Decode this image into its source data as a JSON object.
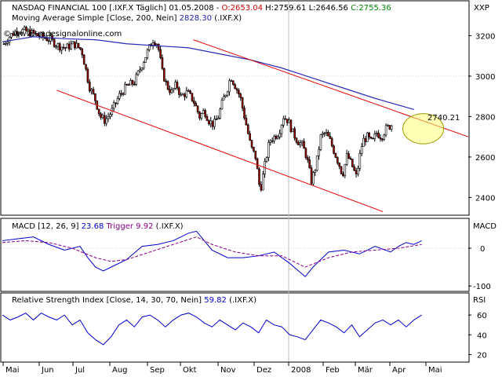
{
  "chart_data": [
    {
      "type": "candlestick",
      "scale": "XXP",
      "header": {
        "prefix": "NASDAQ FINANCIAL 100 [.IXF.X  Täglich] 01.05.2008 - ",
        "open": "O:2653.04",
        "high": "H:2759.61",
        "low": "L:2646.56",
        "close": "C:2755.36"
      },
      "ma_label": {
        "prefix": "Moving Average Simple [Close, 200, Nein]",
        "value": "2828.30",
        "suffix": "(.IXF.X)"
      },
      "watermark": "© www.tradesignalonline.com",
      "last_price_label": "2740.21",
      "ylim": [
        2320,
        3260
      ],
      "yticks": [
        2400,
        2600,
        2800,
        3000,
        3200
      ],
      "close_path": [
        [
          0,
          3160
        ],
        [
          8,
          3200
        ],
        [
          18,
          3230
        ],
        [
          30,
          3220
        ],
        [
          44,
          3200
        ],
        [
          60,
          3180
        ],
        [
          70,
          3150
        ],
        [
          80,
          3140
        ],
        [
          90,
          3160
        ],
        [
          100,
          3130
        ],
        [
          110,
          2950
        ],
        [
          118,
          2880
        ],
        [
          124,
          2800
        ],
        [
          130,
          2780
        ],
        [
          138,
          2820
        ],
        [
          148,
          2900
        ],
        [
          158,
          2950
        ],
        [
          168,
          2970
        ],
        [
          178,
          3060
        ],
        [
          186,
          3130
        ],
        [
          192,
          3180
        ],
        [
          198,
          3160
        ],
        [
          204,
          3020
        ],
        [
          210,
          2950
        ],
        [
          216,
          2920
        ],
        [
          222,
          2960
        ],
        [
          228,
          2900
        ],
        [
          236,
          2920
        ],
        [
          244,
          2880
        ],
        [
          252,
          2800
        ],
        [
          258,
          2830
        ],
        [
          264,
          2780
        ],
        [
          270,
          2760
        ],
        [
          276,
          2800
        ],
        [
          282,
          2880
        ],
        [
          288,
          2940
        ],
        [
          292,
          3000
        ],
        [
          298,
          2950
        ],
        [
          304,
          2900
        ],
        [
          312,
          2760
        ],
        [
          318,
          2650
        ],
        [
          324,
          2600
        ],
        [
          330,
          2430
        ],
        [
          336,
          2560
        ],
        [
          342,
          2680
        ],
        [
          348,
          2700
        ],
        [
          354,
          2720
        ],
        [
          360,
          2800
        ],
        [
          366,
          2780
        ],
        [
          372,
          2720
        ],
        [
          378,
          2680
        ],
        [
          384,
          2660
        ],
        [
          390,
          2600
        ],
        [
          396,
          2480
        ],
        [
          402,
          2560
        ],
        [
          408,
          2700
        ],
        [
          414,
          2720
        ],
        [
          420,
          2680
        ],
        [
          426,
          2620
        ],
        [
          432,
          2560
        ],
        [
          436,
          2510
        ],
        [
          442,
          2610
        ],
        [
          448,
          2560
        ],
        [
          454,
          2500
        ],
        [
          458,
          2600
        ],
        [
          462,
          2680
        ],
        [
          468,
          2700
        ],
        [
          474,
          2670
        ],
        [
          480,
          2720
        ],
        [
          486,
          2700
        ],
        [
          492,
          2740
        ],
        [
          500,
          2760
        ]
      ],
      "ma_path": [
        [
          0,
          3170
        ],
        [
          40,
          3195
        ],
        [
          80,
          3185
        ],
        [
          120,
          3180
        ],
        [
          160,
          3160
        ],
        [
          200,
          3150
        ],
        [
          240,
          3140
        ],
        [
          280,
          3110
        ],
        [
          320,
          3080
        ],
        [
          360,
          3040
        ],
        [
          400,
          2990
        ],
        [
          440,
          2940
        ],
        [
          480,
          2890
        ],
        [
          530,
          2835
        ]
      ],
      "trendlines": [
        {
          "from": [
            246,
            3180
          ],
          "to": [
            600,
            2700
          ]
        },
        {
          "from": [
            70,
            2930
          ],
          "to": [
            490,
            2330
          ]
        }
      ],
      "highlight": {
        "center": [
          542,
          2740
        ],
        "radius_x": 26,
        "radius_y": 75
      }
    },
    {
      "type": "line",
      "label": {
        "prefix": "MACD [12, 26, 9]",
        "value": "23.68",
        "trigger": "Trigger 9.92",
        "suffix": "(.IXF.X)"
      },
      "scale": "MACD",
      "ylim": [
        -110,
        50
      ],
      "yticks": [
        0,
        -100
      ],
      "series": [
        {
          "values": [
            [
              0,
              20
            ],
            [
              20,
              25
            ],
            [
              40,
              30
            ],
            [
              60,
              10
            ],
            [
              80,
              -5
            ],
            [
              100,
              5
            ],
            [
              110,
              -25
            ],
            [
              120,
              -50
            ],
            [
              130,
              -60
            ],
            [
              140,
              -50
            ],
            [
              160,
              -30
            ],
            [
              180,
              5
            ],
            [
              200,
              10
            ],
            [
              220,
              20
            ],
            [
              240,
              40
            ],
            [
              250,
              45
            ],
            [
              260,
              20
            ],
            [
              270,
              -5
            ],
            [
              290,
              -25
            ],
            [
              310,
              -25
            ],
            [
              330,
              -20
            ],
            [
              350,
              -10
            ],
            [
              370,
              -40
            ],
            [
              390,
              -75
            ],
            [
              400,
              -50
            ],
            [
              420,
              -10
            ],
            [
              440,
              -5
            ],
            [
              460,
              -15
            ],
            [
              480,
              5
            ],
            [
              500,
              -10
            ],
            [
              510,
              5
            ],
            [
              520,
              15
            ],
            [
              530,
              10
            ],
            [
              540,
              20
            ]
          ]
        },
        {
          "values": [
            [
              0,
              15
            ],
            [
              30,
              20
            ],
            [
              60,
              15
            ],
            [
              90,
              0
            ],
            [
              120,
              -25
            ],
            [
              140,
              -35
            ],
            [
              160,
              -30
            ],
            [
              190,
              -10
            ],
            [
              220,
              10
            ],
            [
              250,
              30
            ],
            [
              270,
              10
            ],
            [
              300,
              -10
            ],
            [
              330,
              -20
            ],
            [
              360,
              -20
            ],
            [
              390,
              -50
            ],
            [
              420,
              -25
            ],
            [
              450,
              -10
            ],
            [
              480,
              -5
            ],
            [
              510,
              0
            ],
            [
              540,
              10
            ]
          ]
        }
      ]
    },
    {
      "type": "line",
      "label": {
        "prefix": "Relative Strength Index [Close, 14, 30, 70, Nein]",
        "value": "59.82",
        "suffix": "(.IXF.X)"
      },
      "scale": "RSI",
      "ylim": [
        14,
        72
      ],
      "yticks": [
        60,
        40,
        20
      ],
      "series": [
        {
          "values": [
            [
              0,
              60
            ],
            [
              10,
              55
            ],
            [
              20,
              58
            ],
            [
              30,
              62
            ],
            [
              40,
              55
            ],
            [
              50,
              62
            ],
            [
              60,
              58
            ],
            [
              70,
              55
            ],
            [
              80,
              60
            ],
            [
              90,
              50
            ],
            [
              100,
              55
            ],
            [
              110,
              42
            ],
            [
              120,
              35
            ],
            [
              130,
              30
            ],
            [
              140,
              38
            ],
            [
              150,
              50
            ],
            [
              160,
              55
            ],
            [
              170,
              48
            ],
            [
              180,
              58
            ],
            [
              190,
              60
            ],
            [
              200,
              55
            ],
            [
              210,
              48
            ],
            [
              220,
              55
            ],
            [
              230,
              60
            ],
            [
              240,
              62
            ],
            [
              250,
              58
            ],
            [
              260,
              52
            ],
            [
              270,
              48
            ],
            [
              280,
              55
            ],
            [
              290,
              50
            ],
            [
              300,
              45
            ],
            [
              310,
              52
            ],
            [
              320,
              48
            ],
            [
              330,
              42
            ],
            [
              340,
              55
            ],
            [
              350,
              50
            ],
            [
              360,
              48
            ],
            [
              370,
              40
            ],
            [
              380,
              38
            ],
            [
              390,
              35
            ],
            [
              400,
              45
            ],
            [
              410,
              55
            ],
            [
              420,
              52
            ],
            [
              430,
              48
            ],
            [
              440,
              42
            ],
            [
              450,
              50
            ],
            [
              460,
              38
            ],
            [
              470,
              45
            ],
            [
              480,
              52
            ],
            [
              490,
              55
            ],
            [
              500,
              50
            ],
            [
              510,
              55
            ],
            [
              520,
              48
            ],
            [
              530,
              55
            ],
            [
              540,
              60
            ]
          ]
        }
      ]
    }
  ],
  "x_axis": [
    "Mai",
    "Jun",
    "Jul",
    "Aug",
    "Sep",
    "Okt",
    "Nov",
    "Dez",
    "2008",
    "Feb",
    "Mär",
    "Apr",
    "Mai"
  ]
}
